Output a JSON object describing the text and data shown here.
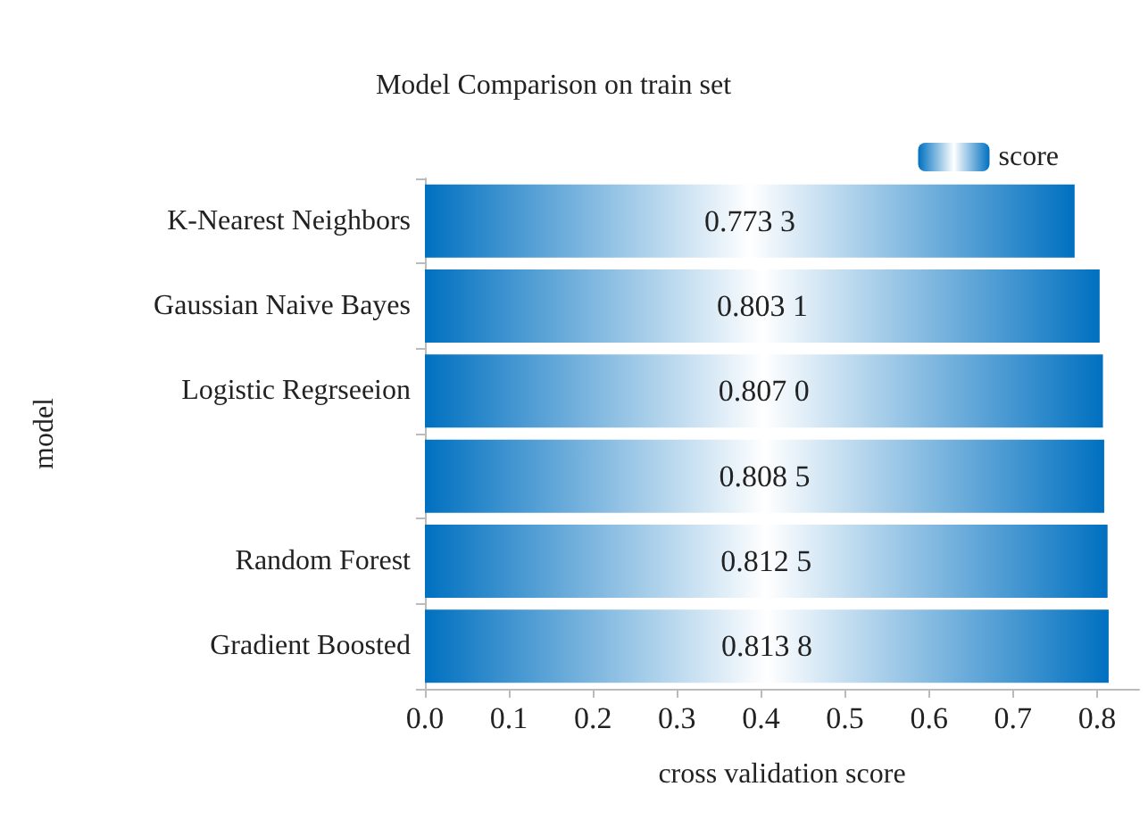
{
  "chart_data": {
    "type": "bar",
    "orientation": "horizontal",
    "title": "Model Comparison on train set",
    "xlabel": "cross validation score",
    "ylabel": "model",
    "categories": [
      "K-Nearest Neighbors",
      "Gaussian Naive Bayes",
      "Logistic Regrseeion",
      null,
      "Random Forest",
      "Gradient Boosted"
    ],
    "series": [
      {
        "name": "score",
        "color": "#0070c0",
        "values": [
          0.7733,
          0.8031,
          0.807,
          0.8085,
          0.8125,
          0.8138
        ]
      }
    ],
    "value_labels": [
      "0.773 3",
      "0.803 1",
      "0.807 0",
      "0.808 5",
      "0.812 5",
      "0.813 8"
    ],
    "xlim": [
      0,
      0.85
    ],
    "xticks": [
      "0.0",
      0.1,
      0.2,
      0.3,
      0.4,
      0.5,
      0.6,
      0.7,
      0.8
    ],
    "grid": false,
    "legend": "top right"
  }
}
